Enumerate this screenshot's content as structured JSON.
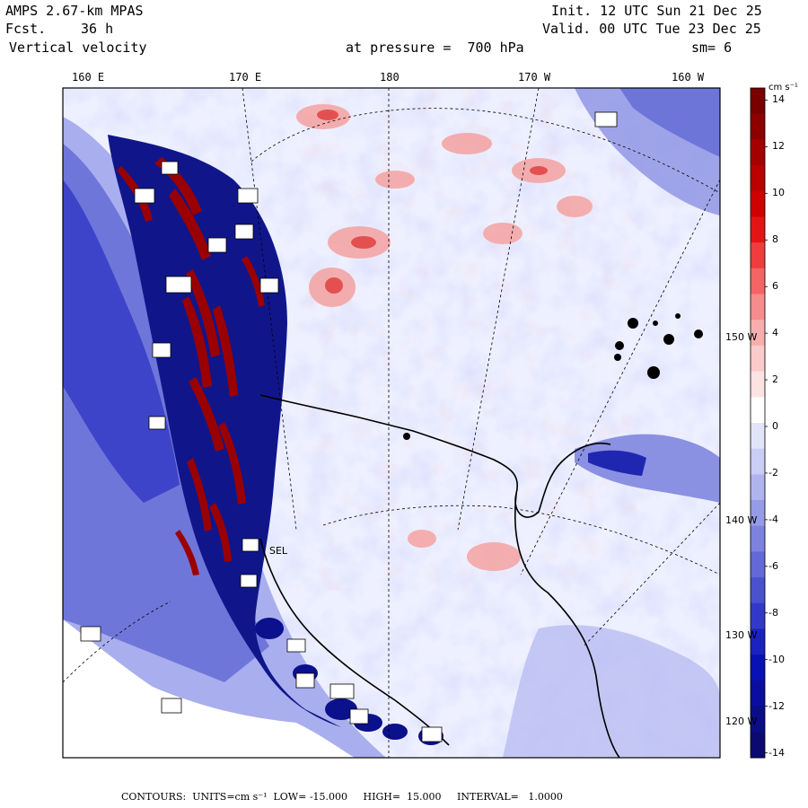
{
  "header": {
    "model": "AMPS 2.67-km MPAS",
    "init": "Init. 12 UTC Sun 21 Dec 25",
    "fcst_label": "Fcst.",
    "fcst_value": "36 h",
    "valid": "Valid. 00 UTC Tue 23 Dec 25",
    "field": "Vertical velocity",
    "pressure": "at pressure =  700 hPa",
    "smooth": "sm= 6"
  },
  "map": {
    "lon_labels": [
      "160 E",
      "170 E",
      "180",
      "170 W",
      "160 W"
    ],
    "lat_labels": [
      "150 W",
      "140 W",
      "130 W",
      "120 W"
    ],
    "station_label": "SEL"
  },
  "colorbar": {
    "units": "cm s⁻¹",
    "levels": [
      14,
      12,
      10,
      8,
      6,
      4,
      2,
      0,
      -2,
      -4,
      -6,
      -8,
      -10,
      -12,
      -14
    ],
    "colors_top_to_bottom": [
      "#7a0000",
      "#8e0000",
      "#a50000",
      "#bb0000",
      "#d00000",
      "#e41414",
      "#f03c3c",
      "#f46464",
      "#f78c8c",
      "#f9aeae",
      "#fbcaca",
      "#fde2e2",
      "#ffffff",
      "#e2e4fa",
      "#cacdf5",
      "#b0b4ee",
      "#969be6",
      "#7c82de",
      "#6369d6",
      "#4a51cf",
      "#3239c8",
      "#1a22c0",
      "#0711b6",
      "#0a0ea0",
      "#0a0c88",
      "#0a0a70"
    ]
  },
  "footer": {
    "contours": "CONTOURS:  UNITS=cm s⁻¹  LOW= -15.000     HIGH=  15.000     INTERVAL=   1.0000"
  },
  "accent_colors": {
    "downward": "#1a22c0",
    "upward": "#d00000",
    "neutral": "#eef0ff"
  }
}
